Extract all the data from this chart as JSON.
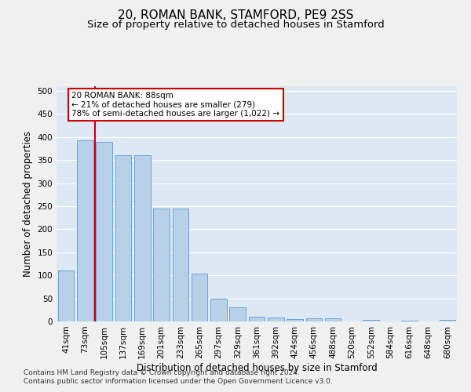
{
  "title": "20, ROMAN BANK, STAMFORD, PE9 2SS",
  "subtitle": "Size of property relative to detached houses in Stamford",
  "xlabel": "Distribution of detached houses by size in Stamford",
  "ylabel": "Number of detached properties",
  "categories": [
    "41sqm",
    "73sqm",
    "105sqm",
    "137sqm",
    "169sqm",
    "201sqm",
    "233sqm",
    "265sqm",
    "297sqm",
    "329sqm",
    "361sqm",
    "392sqm",
    "424sqm",
    "456sqm",
    "488sqm",
    "520sqm",
    "552sqm",
    "584sqm",
    "616sqm",
    "648sqm",
    "680sqm"
  ],
  "values": [
    110,
    393,
    390,
    360,
    360,
    245,
    244,
    104,
    50,
    30,
    10,
    8,
    5,
    7,
    7,
    0,
    4,
    0,
    2,
    0,
    4
  ],
  "bar_color": "#b8d0e8",
  "bar_edge_color": "#5b9bd5",
  "red_line_color": "#cc0000",
  "annotation_text": "20 ROMAN BANK: 88sqm\n← 21% of detached houses are smaller (279)\n78% of semi-detached houses are larger (1,022) →",
  "annotation_box_color": "#ffffff",
  "annotation_box_edge": "#cc0000",
  "ylim": [
    0,
    510
  ],
  "yticks": [
    0,
    50,
    100,
    150,
    200,
    250,
    300,
    350,
    400,
    450,
    500
  ],
  "bg_color": "#dce9f5",
  "grid_color": "#ffffff",
  "title_fontsize": 11,
  "subtitle_fontsize": 9.5,
  "axis_label_fontsize": 8.5,
  "tick_fontsize": 7.5,
  "annotation_fontsize": 7.5,
  "footer_fontsize": 6.5,
  "footer_line1": "Contains HM Land Registry data © Crown copyright and database right 2024.",
  "footer_line2": "Contains public sector information licensed under the Open Government Licence v3.0."
}
